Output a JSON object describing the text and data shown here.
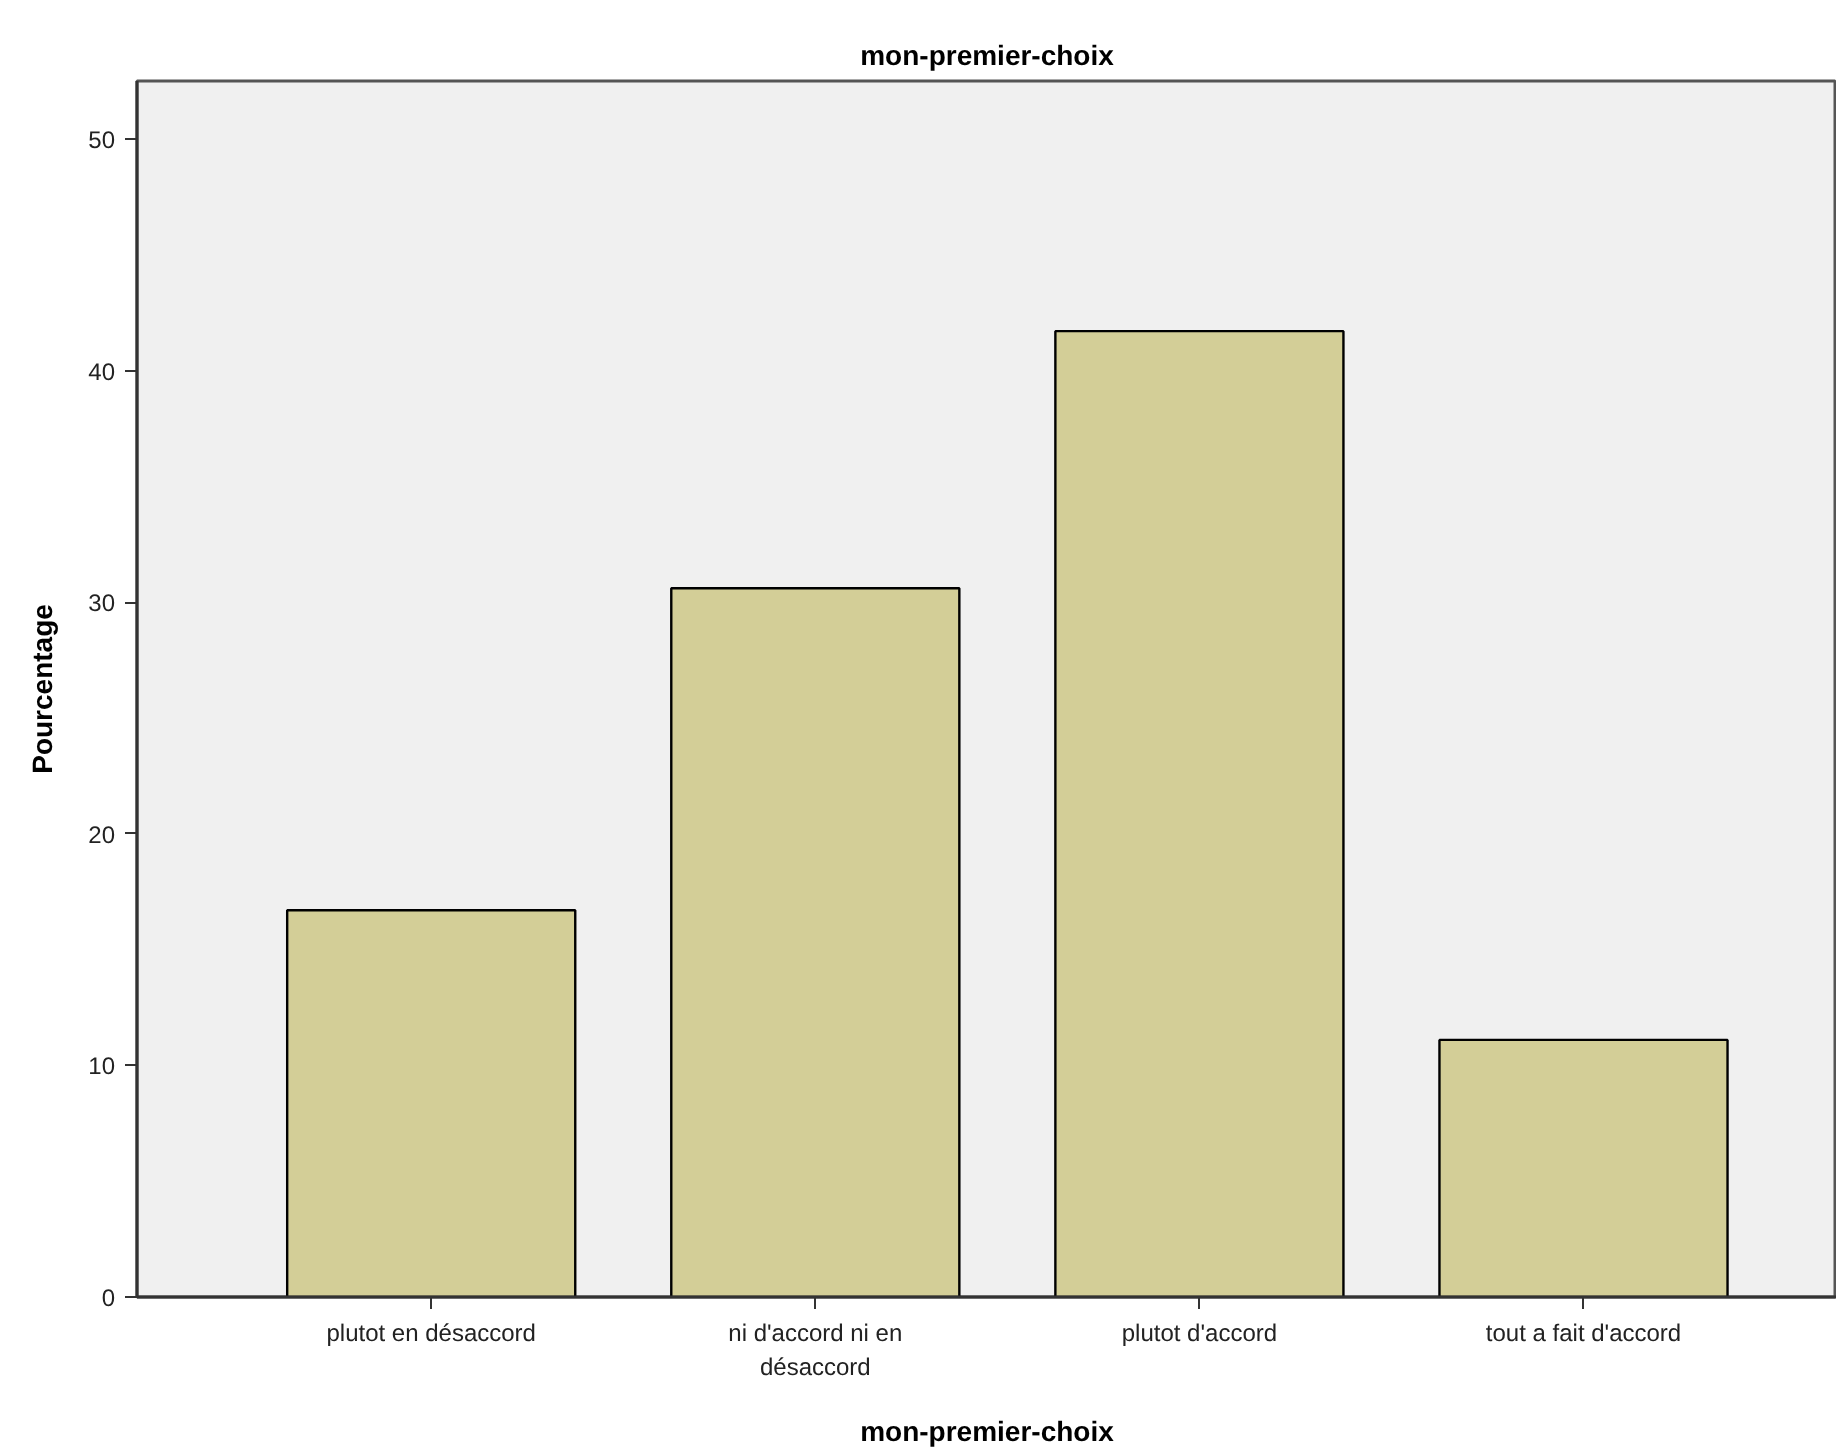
{
  "chart_data": {
    "type": "bar",
    "title": "mon-premier-choix",
    "xlabel": "mon-premier-choix",
    "ylabel": "Pourcentage",
    "categories": [
      "plutot en désaccord",
      "ni d'accord ni en désaccord",
      "plutot d'accord",
      "tout a fait d'accord"
    ],
    "values": [
      16.7,
      30.6,
      41.7,
      11.1
    ],
    "color": "#d3ce97",
    "ylim": [
      0,
      52.5
    ],
    "yticks": [
      0,
      10,
      20,
      30,
      40,
      50
    ],
    "grid": false
  }
}
